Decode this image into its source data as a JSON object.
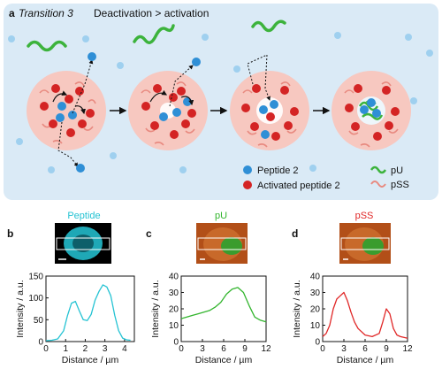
{
  "panel_a": {
    "letter": "a",
    "title": "Transition 3",
    "subtitle": "Deactivation > activation",
    "legend": {
      "peptide": "Peptide 2",
      "activated": "Activated peptide 2",
      "pu": "pU",
      "pss": "pSS"
    },
    "colors": {
      "panel_bg": "#daeaf6",
      "droplet": "#f7c8c0",
      "peptide": "#2f8fd6",
      "activated": "#d42424",
      "pu": "#3cb33c",
      "pss": "#e88a80"
    }
  },
  "panel_b": {
    "letter": "b",
    "label": "Peptide",
    "color": "#25c3d3"
  },
  "panel_c": {
    "letter": "c",
    "label": "pU",
    "color": "#33b52e"
  },
  "panel_d": {
    "letter": "d",
    "label": "pSS",
    "color": "#e02727"
  },
  "axes": {
    "ylabel": "Intensity / a.u.",
    "xlabel": "Distance / µm"
  },
  "chart_data": [
    {
      "type": "line",
      "panel": "b",
      "xlim": [
        0,
        4.5
      ],
      "ylim": [
        0,
        150
      ],
      "xticks": [
        0,
        1,
        2,
        3,
        4
      ],
      "yticks": [
        0,
        50,
        100,
        150
      ],
      "xlabel": "Distance / µm",
      "ylabel": "Intensity / a.u.",
      "x": [
        0.0,
        0.3,
        0.6,
        0.9,
        1.1,
        1.3,
        1.5,
        1.7,
        1.9,
        2.1,
        2.3,
        2.5,
        2.7,
        2.9,
        3.1,
        3.3,
        3.5,
        3.7,
        3.9,
        4.1,
        4.3
      ],
      "y": [
        2,
        3,
        6,
        25,
        60,
        88,
        92,
        70,
        50,
        48,
        62,
        95,
        115,
        130,
        125,
        105,
        60,
        25,
        8,
        4,
        3
      ]
    },
    {
      "type": "line",
      "panel": "c",
      "xlim": [
        0,
        12
      ],
      "ylim": [
        0,
        40
      ],
      "xticks": [
        0,
        3,
        6,
        9,
        12
      ],
      "yticks": [
        0,
        10,
        20,
        30,
        40
      ],
      "xlabel": "Distance / µm",
      "ylabel": "Intensity / a.u.",
      "x": [
        0,
        0.8,
        1.6,
        2.4,
        3.2,
        4.0,
        4.8,
        5.6,
        6.4,
        7.2,
        8.0,
        8.8,
        9.6,
        10.4,
        11.2,
        12.0
      ],
      "y": [
        14,
        15,
        16,
        17,
        18,
        19,
        21,
        24,
        29,
        32,
        33,
        30,
        22,
        15,
        13,
        12
      ]
    },
    {
      "type": "line",
      "panel": "d",
      "xlim": [
        0,
        12
      ],
      "ylim": [
        0,
        40
      ],
      "xticks": [
        0,
        3,
        6,
        9,
        12
      ],
      "yticks": [
        0,
        10,
        20,
        30,
        40
      ],
      "xlabel": "Distance / µm",
      "ylabel": "Intensity / a.u.",
      "x": [
        0,
        0.5,
        1.0,
        1.5,
        2.0,
        2.5,
        3.0,
        3.5,
        4.0,
        4.5,
        5.0,
        6.0,
        7.0,
        8.0,
        8.5,
        9.0,
        9.5,
        10.0,
        10.5,
        11.0,
        12.0
      ],
      "y": [
        3,
        5,
        10,
        20,
        26,
        28,
        30,
        25,
        18,
        12,
        8,
        4,
        3,
        5,
        12,
        20,
        17,
        8,
        4,
        3,
        2
      ]
    }
  ]
}
